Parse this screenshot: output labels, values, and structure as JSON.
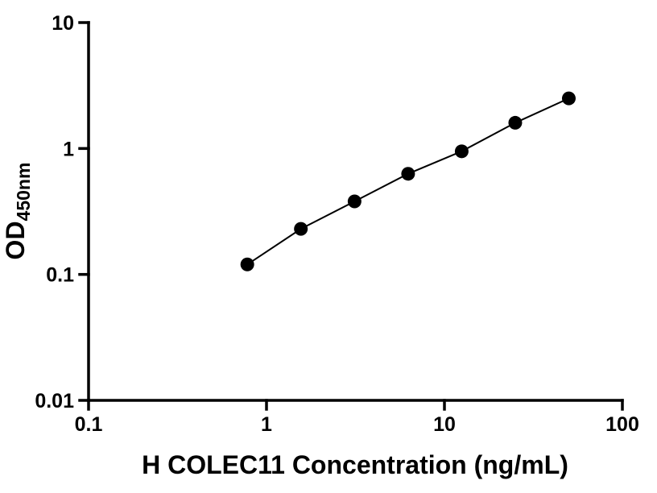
{
  "chart_data": {
    "type": "scatter",
    "title": "",
    "xlabel": "H COLEC11 Concentration (ng/mL)",
    "ylabel_main": "OD",
    "ylabel_sub": "450nm",
    "x_scale": "log",
    "y_scale": "log",
    "xlim": [
      0.1,
      100
    ],
    "ylim": [
      0.01,
      10
    ],
    "x_ticks": [
      0.1,
      1,
      10,
      100
    ],
    "x_tick_labels": [
      "0.1",
      "1",
      "10",
      "100"
    ],
    "y_ticks": [
      0.01,
      0.1,
      1,
      10
    ],
    "y_tick_labels": [
      "0.01",
      "0.1",
      "1",
      "10"
    ],
    "grid": false,
    "legend": null,
    "marker_color": "#000000",
    "line_color": "#000000",
    "marker_radius": 8.5,
    "points": [
      {
        "x": 0.78,
        "y": 0.12
      },
      {
        "x": 1.56,
        "y": 0.23
      },
      {
        "x": 3.125,
        "y": 0.38
      },
      {
        "x": 6.25,
        "y": 0.63
      },
      {
        "x": 12.5,
        "y": 0.95
      },
      {
        "x": 25,
        "y": 1.6
      },
      {
        "x": 50,
        "y": 2.5
      }
    ]
  }
}
